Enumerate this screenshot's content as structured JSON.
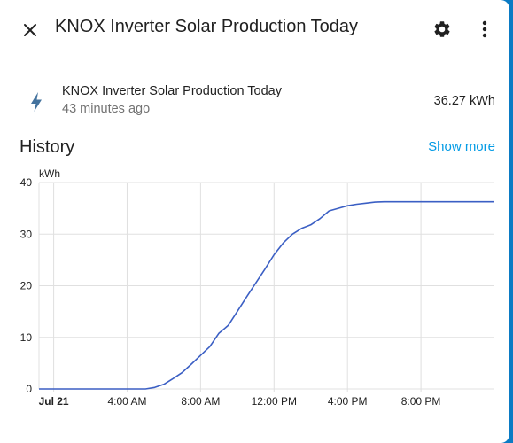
{
  "dialog": {
    "title": "KNOX Inverter Solar Production Today",
    "icons": {
      "close": "close-icon",
      "settings": "gear-icon",
      "more": "more-vert-icon"
    }
  },
  "entity": {
    "icon": "flash-icon",
    "name": "KNOX Inverter Solar Production Today",
    "last_changed": "43 minutes ago",
    "state": "36.27 kWh"
  },
  "history": {
    "title": "History",
    "show_more": "Show more"
  },
  "colors": {
    "accent": "#039be5",
    "line": "#3b5fc4",
    "grid": "#e0e0e0",
    "icon": "#44739e"
  },
  "chart_data": {
    "type": "line",
    "unit_label": "kWh",
    "ylim": [
      0,
      40
    ],
    "y_ticks": [
      0,
      10,
      20,
      30,
      40
    ],
    "x_range_hours": [
      -0.8,
      24
    ],
    "x_ticks": [
      {
        "hour": 0,
        "label": "Jul 21",
        "bold": true
      },
      {
        "hour": 4,
        "label": "4:00 AM"
      },
      {
        "hour": 8,
        "label": "8:00 AM"
      },
      {
        "hour": 12,
        "label": "12:00 PM"
      },
      {
        "hour": 16,
        "label": "4:00 PM"
      },
      {
        "hour": 20,
        "label": "8:00 PM"
      }
    ],
    "grid": true,
    "series": [
      {
        "points": [
          [
            -0.8,
            0
          ],
          [
            5.0,
            0
          ],
          [
            5.5,
            0.3
          ],
          [
            6.0,
            0.9
          ],
          [
            6.5,
            2.0
          ],
          [
            7.0,
            3.2
          ],
          [
            7.5,
            4.8
          ],
          [
            8.0,
            6.5
          ],
          [
            8.5,
            8.2
          ],
          [
            9.0,
            10.8
          ],
          [
            9.5,
            12.3
          ],
          [
            10.0,
            15.0
          ],
          [
            10.5,
            17.8
          ],
          [
            11.0,
            20.5
          ],
          [
            11.5,
            23.2
          ],
          [
            12.0,
            26.0
          ],
          [
            12.5,
            28.3
          ],
          [
            13.0,
            30.0
          ],
          [
            13.5,
            31.1
          ],
          [
            14.0,
            31.8
          ],
          [
            14.5,
            33.0
          ],
          [
            15.0,
            34.5
          ],
          [
            15.5,
            35.0
          ],
          [
            16.0,
            35.5
          ],
          [
            16.5,
            35.8
          ],
          [
            17.0,
            36.0
          ],
          [
            17.5,
            36.2
          ],
          [
            18.0,
            36.27
          ],
          [
            24.0,
            36.27
          ]
        ]
      }
    ]
  }
}
